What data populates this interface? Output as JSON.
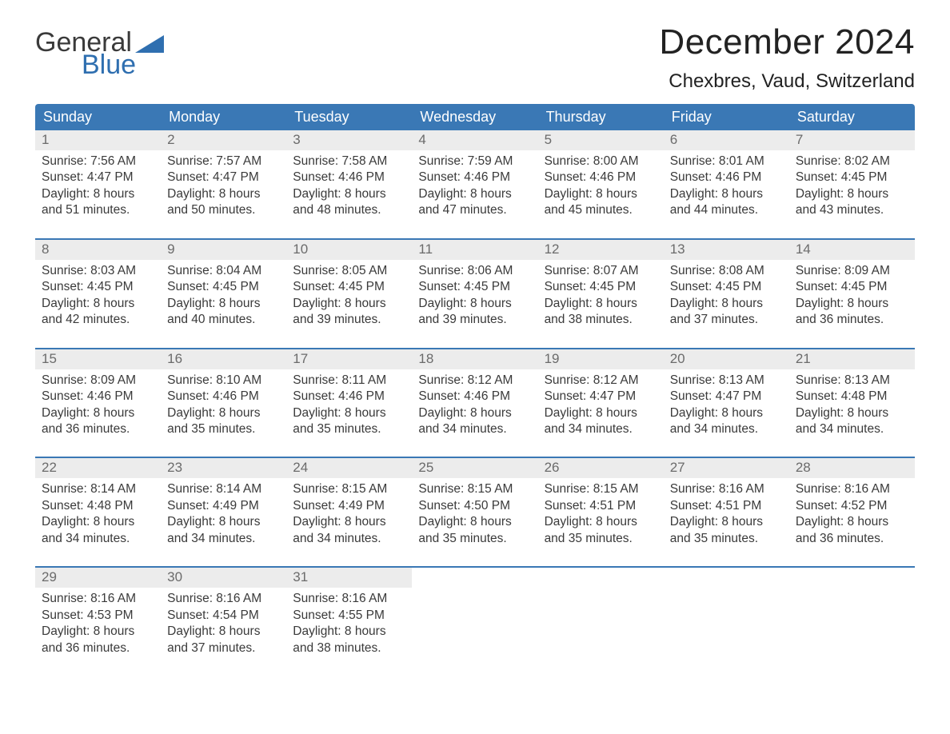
{
  "logo": {
    "text_general": "General",
    "text_blue": "Blue",
    "brand_color": "#2f6fb0",
    "text_color": "#3a3a3a"
  },
  "header": {
    "month_title": "December 2024",
    "location": "Chexbres, Vaud, Switzerland"
  },
  "calendar": {
    "type": "table",
    "header_bg": "#3a78b5",
    "header_text_color": "#ffffff",
    "daynum_bg": "#ececec",
    "daynum_color": "#6b6b6b",
    "body_text_color": "#3a3a3a",
    "separator_color": "#3a78b5",
    "background_color": "#ffffff",
    "columns": [
      "Sunday",
      "Monday",
      "Tuesday",
      "Wednesday",
      "Thursday",
      "Friday",
      "Saturday"
    ],
    "font_size_header": 18,
    "font_size_daynum": 17,
    "font_size_body": 15.5,
    "weeks": [
      [
        {
          "day": "1",
          "sunrise": "Sunrise: 7:56 AM",
          "sunset": "Sunset: 4:47 PM",
          "daylight1": "Daylight: 8 hours",
          "daylight2": "and 51 minutes."
        },
        {
          "day": "2",
          "sunrise": "Sunrise: 7:57 AM",
          "sunset": "Sunset: 4:47 PM",
          "daylight1": "Daylight: 8 hours",
          "daylight2": "and 50 minutes."
        },
        {
          "day": "3",
          "sunrise": "Sunrise: 7:58 AM",
          "sunset": "Sunset: 4:46 PM",
          "daylight1": "Daylight: 8 hours",
          "daylight2": "and 48 minutes."
        },
        {
          "day": "4",
          "sunrise": "Sunrise: 7:59 AM",
          "sunset": "Sunset: 4:46 PM",
          "daylight1": "Daylight: 8 hours",
          "daylight2": "and 47 minutes."
        },
        {
          "day": "5",
          "sunrise": "Sunrise: 8:00 AM",
          "sunset": "Sunset: 4:46 PM",
          "daylight1": "Daylight: 8 hours",
          "daylight2": "and 45 minutes."
        },
        {
          "day": "6",
          "sunrise": "Sunrise: 8:01 AM",
          "sunset": "Sunset: 4:46 PM",
          "daylight1": "Daylight: 8 hours",
          "daylight2": "and 44 minutes."
        },
        {
          "day": "7",
          "sunrise": "Sunrise: 8:02 AM",
          "sunset": "Sunset: 4:45 PM",
          "daylight1": "Daylight: 8 hours",
          "daylight2": "and 43 minutes."
        }
      ],
      [
        {
          "day": "8",
          "sunrise": "Sunrise: 8:03 AM",
          "sunset": "Sunset: 4:45 PM",
          "daylight1": "Daylight: 8 hours",
          "daylight2": "and 42 minutes."
        },
        {
          "day": "9",
          "sunrise": "Sunrise: 8:04 AM",
          "sunset": "Sunset: 4:45 PM",
          "daylight1": "Daylight: 8 hours",
          "daylight2": "and 40 minutes."
        },
        {
          "day": "10",
          "sunrise": "Sunrise: 8:05 AM",
          "sunset": "Sunset: 4:45 PM",
          "daylight1": "Daylight: 8 hours",
          "daylight2": "and 39 minutes."
        },
        {
          "day": "11",
          "sunrise": "Sunrise: 8:06 AM",
          "sunset": "Sunset: 4:45 PM",
          "daylight1": "Daylight: 8 hours",
          "daylight2": "and 39 minutes."
        },
        {
          "day": "12",
          "sunrise": "Sunrise: 8:07 AM",
          "sunset": "Sunset: 4:45 PM",
          "daylight1": "Daylight: 8 hours",
          "daylight2": "and 38 minutes."
        },
        {
          "day": "13",
          "sunrise": "Sunrise: 8:08 AM",
          "sunset": "Sunset: 4:45 PM",
          "daylight1": "Daylight: 8 hours",
          "daylight2": "and 37 minutes."
        },
        {
          "day": "14",
          "sunrise": "Sunrise: 8:09 AM",
          "sunset": "Sunset: 4:45 PM",
          "daylight1": "Daylight: 8 hours",
          "daylight2": "and 36 minutes."
        }
      ],
      [
        {
          "day": "15",
          "sunrise": "Sunrise: 8:09 AM",
          "sunset": "Sunset: 4:46 PM",
          "daylight1": "Daylight: 8 hours",
          "daylight2": "and 36 minutes."
        },
        {
          "day": "16",
          "sunrise": "Sunrise: 8:10 AM",
          "sunset": "Sunset: 4:46 PM",
          "daylight1": "Daylight: 8 hours",
          "daylight2": "and 35 minutes."
        },
        {
          "day": "17",
          "sunrise": "Sunrise: 8:11 AM",
          "sunset": "Sunset: 4:46 PM",
          "daylight1": "Daylight: 8 hours",
          "daylight2": "and 35 minutes."
        },
        {
          "day": "18",
          "sunrise": "Sunrise: 8:12 AM",
          "sunset": "Sunset: 4:46 PM",
          "daylight1": "Daylight: 8 hours",
          "daylight2": "and 34 minutes."
        },
        {
          "day": "19",
          "sunrise": "Sunrise: 8:12 AM",
          "sunset": "Sunset: 4:47 PM",
          "daylight1": "Daylight: 8 hours",
          "daylight2": "and 34 minutes."
        },
        {
          "day": "20",
          "sunrise": "Sunrise: 8:13 AM",
          "sunset": "Sunset: 4:47 PM",
          "daylight1": "Daylight: 8 hours",
          "daylight2": "and 34 minutes."
        },
        {
          "day": "21",
          "sunrise": "Sunrise: 8:13 AM",
          "sunset": "Sunset: 4:48 PM",
          "daylight1": "Daylight: 8 hours",
          "daylight2": "and 34 minutes."
        }
      ],
      [
        {
          "day": "22",
          "sunrise": "Sunrise: 8:14 AM",
          "sunset": "Sunset: 4:48 PM",
          "daylight1": "Daylight: 8 hours",
          "daylight2": "and 34 minutes."
        },
        {
          "day": "23",
          "sunrise": "Sunrise: 8:14 AM",
          "sunset": "Sunset: 4:49 PM",
          "daylight1": "Daylight: 8 hours",
          "daylight2": "and 34 minutes."
        },
        {
          "day": "24",
          "sunrise": "Sunrise: 8:15 AM",
          "sunset": "Sunset: 4:49 PM",
          "daylight1": "Daylight: 8 hours",
          "daylight2": "and 34 minutes."
        },
        {
          "day": "25",
          "sunrise": "Sunrise: 8:15 AM",
          "sunset": "Sunset: 4:50 PM",
          "daylight1": "Daylight: 8 hours",
          "daylight2": "and 35 minutes."
        },
        {
          "day": "26",
          "sunrise": "Sunrise: 8:15 AM",
          "sunset": "Sunset: 4:51 PM",
          "daylight1": "Daylight: 8 hours",
          "daylight2": "and 35 minutes."
        },
        {
          "day": "27",
          "sunrise": "Sunrise: 8:16 AM",
          "sunset": "Sunset: 4:51 PM",
          "daylight1": "Daylight: 8 hours",
          "daylight2": "and 35 minutes."
        },
        {
          "day": "28",
          "sunrise": "Sunrise: 8:16 AM",
          "sunset": "Sunset: 4:52 PM",
          "daylight1": "Daylight: 8 hours",
          "daylight2": "and 36 minutes."
        }
      ],
      [
        {
          "day": "29",
          "sunrise": "Sunrise: 8:16 AM",
          "sunset": "Sunset: 4:53 PM",
          "daylight1": "Daylight: 8 hours",
          "daylight2": "and 36 minutes."
        },
        {
          "day": "30",
          "sunrise": "Sunrise: 8:16 AM",
          "sunset": "Sunset: 4:54 PM",
          "daylight1": "Daylight: 8 hours",
          "daylight2": "and 37 minutes."
        },
        {
          "day": "31",
          "sunrise": "Sunrise: 8:16 AM",
          "sunset": "Sunset: 4:55 PM",
          "daylight1": "Daylight: 8 hours",
          "daylight2": "and 38 minutes."
        },
        {
          "empty": true
        },
        {
          "empty": true
        },
        {
          "empty": true
        },
        {
          "empty": true
        }
      ]
    ]
  }
}
